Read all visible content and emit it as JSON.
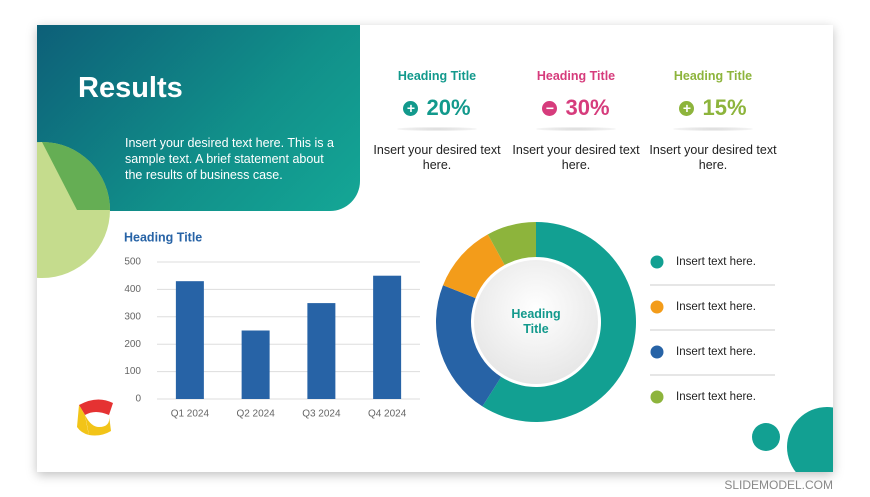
{
  "title": "Results",
  "intro": "Insert your desired text here. This is a sample text. A brief statement about the results of business case.",
  "stats": [
    {
      "heading": "Heading Title",
      "value": "20%",
      "text": "Insert your desired text here.",
      "color": "#12998c",
      "sign": "plus"
    },
    {
      "heading": "Heading Title",
      "value": "30%",
      "text": "Insert your desired text here.",
      "color": "#d63c7c",
      "sign": "minus"
    },
    {
      "heading": "Heading Title",
      "value": "15%",
      "text": "Insert your desired text here.",
      "color": "#8db43c",
      "sign": "plus"
    }
  ],
  "watermark": "SLIDEMODEL.COM",
  "chart_data": [
    {
      "type": "bar",
      "title": "Heading Title",
      "categories": [
        "Q1 2024",
        "Q2 2024",
        "Q3 2024",
        "Q4 2024"
      ],
      "values": [
        430,
        250,
        350,
        450
      ],
      "color": "#2763a6",
      "ylim": [
        0,
        500
      ],
      "yticks": [
        0,
        100,
        200,
        300,
        400,
        500
      ],
      "grid": true
    },
    {
      "type": "pie",
      "title": "Heading Title",
      "categories": [
        "Insert text here.",
        "Insert text here.",
        "Insert text here.",
        "Insert text here."
      ],
      "values": [
        59,
        22,
        11,
        8
      ],
      "colors": [
        "#12a092",
        "#2763a6",
        "#f39c1a",
        "#8db43c"
      ],
      "legend_order": [
        0,
        2,
        1,
        3
      ]
    }
  ]
}
